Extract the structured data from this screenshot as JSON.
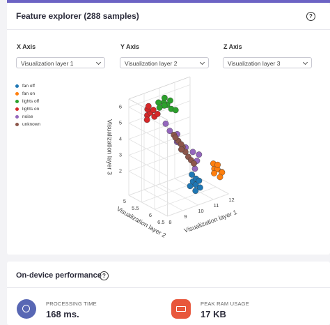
{
  "feature_explorer": {
    "title": "Feature explorer (288 samples)",
    "help": "?",
    "axes": [
      {
        "label": "X Axis",
        "selected": "Visualization layer 1"
      },
      {
        "label": "Y Axis",
        "selected": "Visualization layer 2"
      },
      {
        "label": "Z Axis",
        "selected": "Visualization layer 3"
      }
    ],
    "chart_data": {
      "type": "scatter3d",
      "x_title": "Visualization layer 1",
      "y_title": "Visualization layer 2",
      "z_title": "Visualization layer 3",
      "xlim": [
        8,
        12
      ],
      "ylim": [
        5,
        6.5
      ],
      "zlim": [
        0.5,
        6.5
      ],
      "xticks": [
        8,
        9,
        10,
        11,
        12
      ],
      "yticks": [
        5,
        5.5,
        6,
        6.5
      ],
      "zticks": [
        2,
        3,
        4,
        5,
        6
      ],
      "grid": true,
      "series": [
        {
          "name": "fan off",
          "color": "#1f77b4",
          "x": [
            10.0,
            10.1,
            10.2,
            9.9,
            10.3,
            10.1,
            10.0,
            10.4
          ],
          "y": [
            6.3,
            6.35,
            6.3,
            6.25,
            6.4,
            6.2,
            6.4,
            6.3
          ],
          "z": [
            1.8,
            1.6,
            1.9,
            1.5,
            1.4,
            2.1,
            1.3,
            1.7
          ]
        },
        {
          "name": "fan on",
          "color": "#ff7f0e",
          "x": [
            11.4,
            11.6,
            11.8,
            11.5,
            11.7,
            11.9,
            11.3,
            11.6
          ],
          "y": [
            6.3,
            6.3,
            6.35,
            6.2,
            6.25,
            6.3,
            6.35,
            6.4
          ],
          "z": [
            2.1,
            2.0,
            1.8,
            2.3,
            2.2,
            1.7,
            1.9,
            1.6
          ]
        },
        {
          "name": "lights off",
          "color": "#2ca02c",
          "x": [
            9.6,
            9.8,
            10.0,
            10.1,
            9.7,
            9.9,
            10.2,
            10.3,
            9.5,
            10.0
          ],
          "y": [
            5.2,
            5.3,
            5.3,
            5.4,
            5.35,
            5.25,
            5.3,
            5.45,
            5.3,
            5.2
          ],
          "z": [
            5.9,
            5.8,
            5.7,
            5.5,
            6.0,
            5.65,
            5.9,
            5.4,
            5.7,
            6.05
          ]
        },
        {
          "name": "lights on",
          "color": "#d62728",
          "x": [
            8.7,
            8.9,
            9.0,
            8.8,
            9.1,
            8.6,
            9.2,
            8.95
          ],
          "y": [
            5.3,
            5.3,
            5.4,
            5.25,
            5.3,
            5.35,
            5.4,
            5.2
          ],
          "z": [
            5.5,
            5.6,
            5.4,
            5.8,
            5.7,
            5.3,
            5.5,
            5.9
          ]
        },
        {
          "name": "noise",
          "color": "#9467bd",
          "x": [
            9.5,
            9.8,
            10.2,
            9.9,
            10.5,
            10.6,
            10.9,
            9.7,
            10.3,
            9.4
          ],
          "y": [
            5.7,
            5.8,
            5.9,
            5.75,
            6.0,
            6.1,
            6.0,
            5.9,
            6.2,
            5.6
          ],
          "z": [
            4.6,
            3.9,
            3.5,
            4.3,
            3.2,
            2.7,
            2.9,
            4.0,
            2.4,
            5.0
          ]
        },
        {
          "name": "unknown",
          "color": "#8c564b",
          "x": [
            9.6,
            9.8,
            10.0,
            10.1,
            10.2,
            9.9,
            10.3,
            9.7,
            10.4,
            10.0
          ],
          "y": [
            5.8,
            5.85,
            5.9,
            5.95,
            6.0,
            5.9,
            6.05,
            5.8,
            6.1,
            5.85
          ],
          "z": [
            4.4,
            4.0,
            3.6,
            3.3,
            3.0,
            3.8,
            2.8,
            4.2,
            2.6,
            3.4
          ]
        }
      ]
    }
  },
  "performance": {
    "title": "On-device performance",
    "help": "?",
    "metrics": [
      {
        "label": "PROCESSING TIME",
        "value": "168 ms."
      },
      {
        "label": "PEAK RAM USAGE",
        "value": "17 KB"
      }
    ]
  }
}
